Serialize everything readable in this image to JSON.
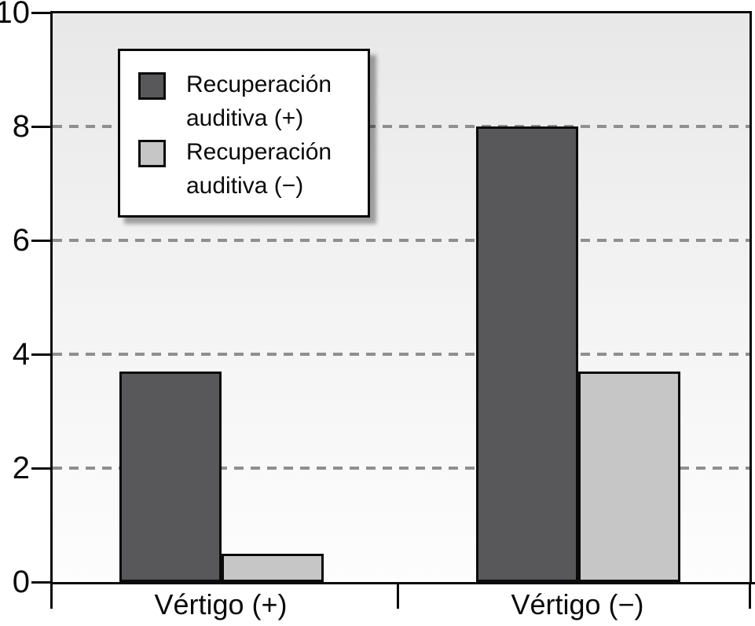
{
  "chart_data": {
    "type": "bar",
    "categories": [
      "Vértigo (+)",
      "Vértigo (−)"
    ],
    "series": [
      {
        "name": "Recuperación auditiva (+)",
        "color": "#58585a",
        "values": [
          3.7,
          8
        ]
      },
      {
        "name": "Recuperación auditiva (−)",
        "color": "#c6c6c6",
        "values": [
          0.5,
          3.7
        ]
      }
    ],
    "title": "",
    "xlabel": "",
    "ylabel": "",
    "ylim": [
      0,
      10
    ],
    "yticks": [
      0,
      2,
      4,
      6,
      8,
      10
    ],
    "grid": {
      "horizontal": true,
      "style": "dashed",
      "at": [
        2,
        4,
        6,
        8
      ],
      "color": "#8f8f8f"
    },
    "legend_position": "top-left"
  },
  "legend": {
    "items": [
      {
        "line1": "Recuperación",
        "line2": "auditiva (+)",
        "color": "#58585a"
      },
      {
        "line1": "Recuperación",
        "line2": "auditiva (−)",
        "color": "#c6c6c6"
      }
    ]
  },
  "axes": {
    "y_tick_labels": [
      "10",
      "8",
      "6",
      "4",
      "2",
      "0"
    ],
    "x_labels": [
      "Vértigo (+)",
      "Vértigo (−)"
    ]
  },
  "colors": {
    "axis": "#0a0a0a",
    "grid": "#8f8f8f",
    "bar_dark": "#58585a",
    "bar_light": "#c6c6c6",
    "plot_bg_top": "#e8e8e8",
    "plot_bg_bottom": "#fdfdfd",
    "legend_bg": "#ffffff"
  }
}
